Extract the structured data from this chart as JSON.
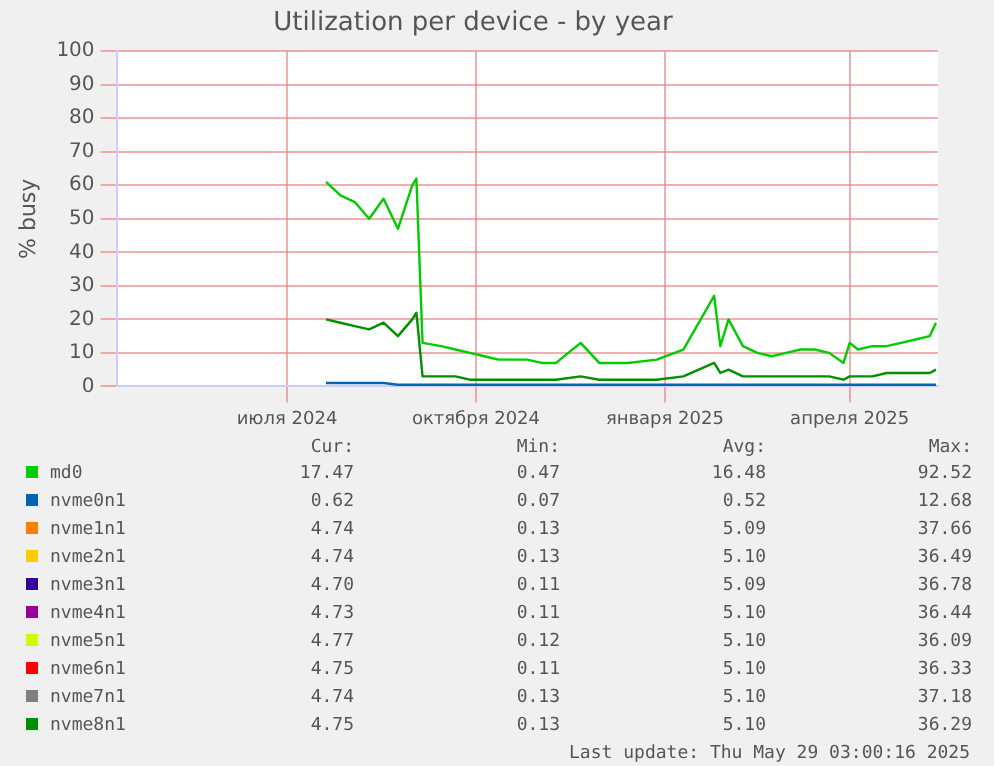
{
  "chart_data": {
    "type": "line",
    "title": "Utilization per device - by year",
    "ylabel": "% busy",
    "xlim": [
      "2024-04-24",
      "2025-05-29"
    ],
    "xticks": [
      {
        "value": "2024-07-16",
        "label": "июля 2024"
      },
      {
        "value": "2024-10-16",
        "label": "октября 2024"
      },
      {
        "value": "2025-01-16",
        "label": "января 2025"
      },
      {
        "value": "2025-04-16",
        "label": "апреля 2025"
      }
    ],
    "ylim": [
      0,
      100
    ],
    "yticks": [
      0,
      10,
      20,
      30,
      40,
      50,
      60,
      70,
      80,
      90,
      100
    ],
    "grid": true,
    "legend": "bottom",
    "marker": "none",
    "line_style": "solid",
    "x": [
      "2024-08-04",
      "2024-08-11",
      "2024-08-18",
      "2024-08-25",
      "2024-09-01",
      "2024-09-08",
      "2024-09-15",
      "2024-09-17",
      "2024-09-20",
      "2024-09-29",
      "2024-10-06",
      "2024-10-13",
      "2024-10-20",
      "2024-10-27",
      "2024-11-03",
      "2024-11-10",
      "2024-11-17",
      "2024-11-24",
      "2024-12-06",
      "2024-12-15",
      "2024-12-22",
      "2024-12-29",
      "2025-01-12",
      "2025-01-25",
      "2025-02-09",
      "2025-02-12",
      "2025-02-16",
      "2025-02-23",
      "2025-03-02",
      "2025-03-09",
      "2025-03-16",
      "2025-03-23",
      "2025-03-30",
      "2025-04-06",
      "2025-04-13",
      "2025-04-16",
      "2025-04-20",
      "2025-04-27",
      "2025-05-04",
      "2025-05-11",
      "2025-05-18",
      "2025-05-25",
      "2025-05-28"
    ],
    "series": [
      {
        "name": "md0",
        "color": "#00cc00",
        "values": [
          61,
          57,
          55,
          50,
          56,
          47,
          60,
          62,
          13,
          12,
          11,
          10,
          9,
          8,
          8,
          8,
          7,
          7,
          13,
          7,
          7,
          7,
          8,
          11,
          27,
          12,
          20,
          12,
          10,
          9,
          10,
          11,
          11,
          10,
          7,
          13,
          11,
          12,
          12,
          13,
          14,
          15,
          19
        ]
      },
      {
        "name": "nvme0n1",
        "color": "#0066b3",
        "values": [
          1,
          1,
          1,
          1,
          1,
          0.5,
          0.5,
          0.5,
          0.5,
          0.5,
          0.5,
          0.5,
          0.5,
          0.5,
          0.5,
          0.5,
          0.5,
          0.5,
          0.5,
          0.5,
          0.5,
          0.5,
          0.5,
          0.5,
          0.5,
          0.5,
          0.5,
          0.5,
          0.5,
          0.5,
          0.5,
          0.5,
          0.5,
          0.5,
          0.5,
          0.5,
          0.5,
          0.5,
          0.5,
          0.5,
          0.5,
          0.5,
          0.5
        ]
      },
      {
        "name": "nvme1n1",
        "color": "#ff8000",
        "values": [
          null,
          null,
          null,
          null,
          null,
          null,
          null,
          null,
          null,
          null,
          null,
          null,
          null,
          null,
          null,
          null,
          null,
          null,
          null,
          null,
          null,
          null,
          null,
          null,
          null,
          null,
          null,
          null,
          null,
          null,
          null,
          null,
          null,
          null,
          null,
          null,
          null,
          null,
          null,
          null,
          null,
          null,
          null
        ]
      },
      {
        "name": "nvme2n1",
        "color": "#ffcc00",
        "values": [
          null,
          null,
          null,
          null,
          null,
          null,
          null,
          null,
          null,
          null,
          null,
          null,
          null,
          null,
          null,
          null,
          null,
          null,
          null,
          null,
          null,
          null,
          null,
          null,
          null,
          null,
          null,
          null,
          null,
          null,
          null,
          null,
          null,
          null,
          null,
          null,
          null,
          null,
          null,
          null,
          null,
          null,
          null
        ]
      },
      {
        "name": "nvme3n1",
        "color": "#330099",
        "values": [
          null,
          null,
          null,
          null,
          null,
          null,
          null,
          null,
          null,
          null,
          null,
          null,
          null,
          null,
          null,
          null,
          null,
          null,
          null,
          null,
          null,
          null,
          null,
          null,
          null,
          null,
          null,
          null,
          null,
          null,
          null,
          null,
          null,
          null,
          null,
          null,
          null,
          null,
          null,
          null,
          null,
          null,
          null
        ]
      },
      {
        "name": "nvme4n1",
        "color": "#990099",
        "values": [
          null,
          null,
          null,
          null,
          null,
          null,
          null,
          null,
          null,
          null,
          null,
          null,
          null,
          null,
          null,
          null,
          null,
          null,
          null,
          null,
          null,
          null,
          null,
          null,
          null,
          null,
          null,
          null,
          null,
          null,
          null,
          null,
          null,
          null,
          null,
          null,
          null,
          null,
          null,
          null,
          null,
          null,
          null
        ]
      },
      {
        "name": "nvme5n1",
        "color": "#ccff00",
        "values": [
          null,
          null,
          null,
          null,
          null,
          null,
          null,
          null,
          null,
          null,
          null,
          null,
          null,
          null,
          null,
          null,
          null,
          null,
          null,
          null,
          null,
          null,
          null,
          null,
          null,
          null,
          null,
          null,
          null,
          null,
          null,
          null,
          null,
          null,
          null,
          null,
          null,
          null,
          null,
          null,
          null,
          null,
          null
        ]
      },
      {
        "name": "nvme6n1",
        "color": "#ff0000",
        "values": [
          null,
          null,
          null,
          null,
          null,
          null,
          null,
          null,
          null,
          null,
          null,
          null,
          null,
          null,
          null,
          null,
          null,
          null,
          null,
          null,
          null,
          null,
          null,
          null,
          null,
          null,
          null,
          null,
          null,
          null,
          null,
          null,
          null,
          null,
          null,
          null,
          null,
          null,
          null,
          null,
          null,
          null,
          null
        ]
      },
      {
        "name": "nvme7n1",
        "color": "#808080",
        "values": [
          null,
          null,
          null,
          null,
          null,
          null,
          null,
          null,
          null,
          null,
          null,
          null,
          null,
          null,
          null,
          null,
          null,
          null,
          null,
          null,
          null,
          null,
          null,
          null,
          null,
          null,
          null,
          null,
          null,
          null,
          null,
          null,
          null,
          null,
          null,
          null,
          null,
          null,
          null,
          null,
          null,
          null,
          null
        ]
      },
      {
        "name": "nvme8n1",
        "color": "#008f00",
        "values": [
          20,
          19,
          18,
          17,
          19,
          15,
          20,
          22,
          3,
          3,
          3,
          2,
          2,
          2,
          2,
          2,
          2,
          2,
          3,
          2,
          2,
          2,
          2,
          3,
          7,
          4,
          5,
          3,
          3,
          3,
          3,
          3,
          3,
          3,
          2,
          3,
          3,
          3,
          4,
          4,
          4,
          4,
          5
        ]
      }
    ],
    "annotations": [
      "Cur:",
      "Min:",
      "Avg:",
      "Max:",
      "17.47",
      "0.47",
      "16.48",
      "92.52",
      "0.62",
      "0.07",
      "0.52",
      "12.68",
      "4.74",
      "0.13",
      "5.09",
      "37.66",
      "4.74",
      "0.13",
      "5.10",
      "36.49",
      "4.70",
      "0.11",
      "5.09",
      "36.78",
      "4.73",
      "0.11",
      "5.10",
      "36.44",
      "4.77",
      "0.12",
      "5.10",
      "36.09",
      "4.75",
      "0.11",
      "5.10",
      "36.33",
      "4.74",
      "0.13",
      "5.10",
      "37.18",
      "4.75",
      "0.13",
      "5.10",
      "36.29",
      "Last update: Thu May 29 03:00:16 2025"
    ]
  }
}
